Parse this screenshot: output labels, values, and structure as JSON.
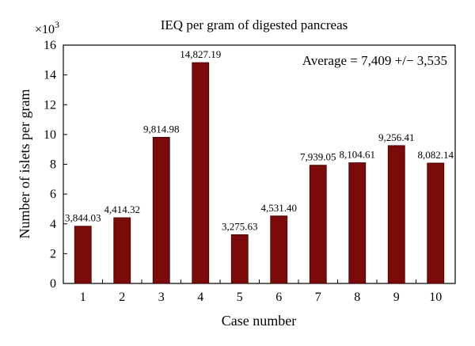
{
  "chart_data": {
    "type": "bar",
    "title": "IEQ per gram of digested pancreas",
    "xlabel": "Case number",
    "ylabel": "Number of islets per gram",
    "y_multiplier_label": "×10",
    "y_multiplier_exponent": "3",
    "annotation": "Average = 7,409 +/− 3,535",
    "annotation_placement": "top-right",
    "categories": [
      "1",
      "2",
      "3",
      "4",
      "5",
      "6",
      "7",
      "8",
      "9",
      "10"
    ],
    "values": [
      3844.03,
      4414.32,
      9814.98,
      14827.19,
      3275.63,
      4531.4,
      7939.05,
      8104.61,
      9256.41,
      8082.14
    ],
    "data_labels": [
      "3,844.03",
      "4,414.32",
      "9,814.98",
      "14,827.19",
      "3,275.63",
      "4,531.40",
      "7,939.05",
      "8,104.61",
      "9,256.41",
      "8,082.14"
    ],
    "y_ticks": [
      "0",
      "2",
      "4",
      "6",
      "8",
      "10",
      "12",
      "14",
      "16"
    ],
    "y_tick_values": [
      0,
      2000,
      4000,
      6000,
      8000,
      10000,
      12000,
      14000,
      16000
    ],
    "ylim": [
      0,
      16000
    ],
    "grid": false,
    "bar_color": "#7b0a0a"
  }
}
